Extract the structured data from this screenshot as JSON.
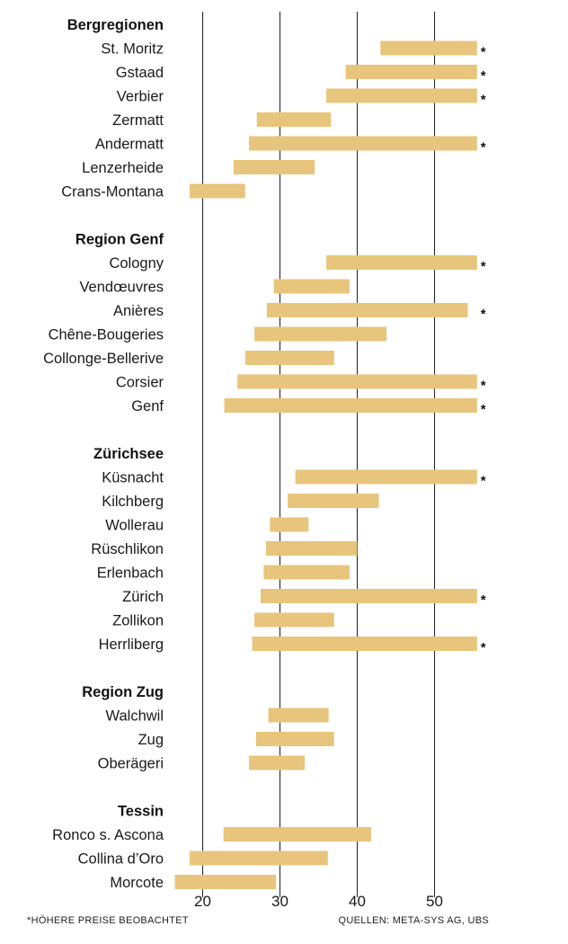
{
  "chart_data": {
    "type": "bar",
    "subtype": "floating-range",
    "xlim": [
      15,
      55.5
    ],
    "xticks": [
      20,
      30,
      40,
      50
    ],
    "grid": "vertical",
    "bar_color": "#e8c57c",
    "groups": [
      {
        "name": "Bergregionen",
        "items": [
          {
            "label": "St. Moritz",
            "min": 43,
            "max": 55.5,
            "flag": true
          },
          {
            "label": "Gstaad",
            "min": 38.5,
            "max": 55.5,
            "flag": true
          },
          {
            "label": "Verbier",
            "min": 36,
            "max": 55.5,
            "flag": true
          },
          {
            "label": "Zermatt",
            "min": 27,
            "max": 36.6,
            "flag": false
          },
          {
            "label": "Andermatt",
            "min": 26,
            "max": 55.5,
            "flag": true
          },
          {
            "label": "Lenzerheide",
            "min": 24,
            "max": 34.5,
            "flag": false
          },
          {
            "label": "Crans-Montana",
            "min": 18.3,
            "max": 25.5,
            "flag": false
          }
        ]
      },
      {
        "name": "Region Genf",
        "items": [
          {
            "label": "Cologny",
            "min": 36,
            "max": 55.5,
            "flag": true
          },
          {
            "label": "Vendœuvres",
            "min": 29.2,
            "max": 39,
            "flag": false
          },
          {
            "label": "Anières",
            "min": 28.3,
            "max": 54.3,
            "flag": true
          },
          {
            "label": "Chêne-Bougeries",
            "min": 26.7,
            "max": 43.8,
            "flag": false
          },
          {
            "label": "Collonge-Bellerive",
            "min": 25.5,
            "max": 37,
            "flag": false
          },
          {
            "label": "Corsier",
            "min": 24.5,
            "max": 55.5,
            "flag": true
          },
          {
            "label": "Genf",
            "min": 22.8,
            "max": 55.5,
            "flag": true
          }
        ]
      },
      {
        "name": "Zürichsee",
        "items": [
          {
            "label": "Küsnacht",
            "min": 32,
            "max": 55.5,
            "flag": true
          },
          {
            "label": "Kilchberg",
            "min": 31,
            "max": 42.8,
            "flag": false
          },
          {
            "label": "Wollerau",
            "min": 28.7,
            "max": 33.7,
            "flag": false
          },
          {
            "label": "Rüschlikon",
            "min": 28.2,
            "max": 40,
            "flag": false
          },
          {
            "label": "Erlenbach",
            "min": 27.9,
            "max": 39,
            "flag": false
          },
          {
            "label": "Zürich",
            "min": 27.5,
            "max": 55.5,
            "flag": true
          },
          {
            "label": "Zollikon",
            "min": 26.7,
            "max": 37,
            "flag": false
          },
          {
            "label": "Herrliberg",
            "min": 26.4,
            "max": 55.5,
            "flag": true
          }
        ]
      },
      {
        "name": "Region Zug",
        "items": [
          {
            "label": "Walchwil",
            "min": 28.5,
            "max": 36.3,
            "flag": false
          },
          {
            "label": "Zug",
            "min": 26.9,
            "max": 37,
            "flag": false
          },
          {
            "label": "Oberägeri",
            "min": 26,
            "max": 33.2,
            "flag": false
          }
        ]
      },
      {
        "name": "Tessin",
        "items": [
          {
            "label": "Ronco s. Ascona",
            "min": 22.7,
            "max": 41.8,
            "flag": false
          },
          {
            "label": "Collina d’Oro",
            "min": 18.3,
            "max": 36.2,
            "flag": false
          },
          {
            "label": "Morcote",
            "min": 16.4,
            "max": 29.5,
            "flag": false
          }
        ]
      }
    ]
  },
  "flag_marker": "*",
  "footnote": "*HÖHERE PREISE BEOBACHTET",
  "source": "QUELLEN: META-SYS AG, UBS"
}
